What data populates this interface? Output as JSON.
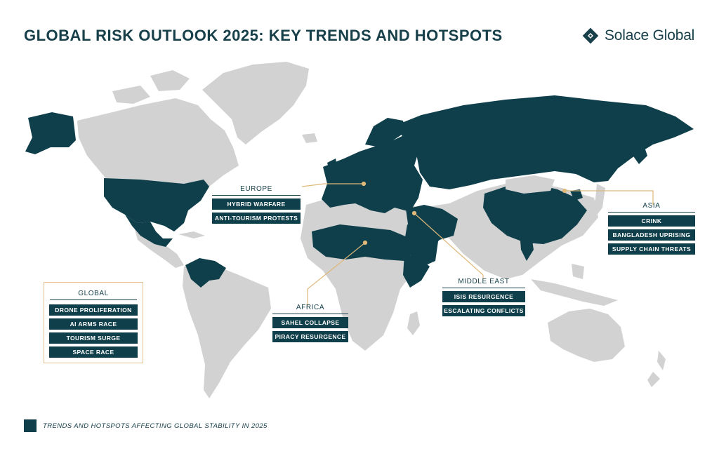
{
  "title": "GLOBAL RISK OUTLOOK 2025: KEY TRENDS AND HOTSPOTS",
  "brand": {
    "name": "Solace Global",
    "icon": "diamond-logo-icon"
  },
  "colors": {
    "hotspot": "#0e3f4b",
    "land": "#d2d2d2",
    "connector": "#e0b878",
    "global_border": "#e6c48f"
  },
  "regions": {
    "europe": {
      "title": "EUROPE",
      "items": [
        "HYBRID WARFARE",
        "ANTI-TOURISM PROTESTS"
      ]
    },
    "asia": {
      "title": "ASIA",
      "items": [
        "CRINK",
        "BANGLADESH UPRISING",
        "SUPPLY CHAIN THREATS"
      ]
    },
    "middle_east": {
      "title": "MIDDLE EAST",
      "items": [
        "ISIS RESURGENCE",
        "ESCALATING CONFLICTS"
      ]
    },
    "africa": {
      "title": "AFRICA",
      "items": [
        "SAHEL COLLAPSE",
        "PIRACY RESURGENCE"
      ]
    },
    "global": {
      "title": "GLOBAL",
      "items": [
        "DRONE PROLIFERATION",
        "AI ARMS RACE",
        "TOURISM SURGE",
        "SPACE RACE"
      ]
    }
  },
  "legend": {
    "label": "TRENDS AND HOTSPOTS AFFECTING GLOBAL STABILITY IN 2025"
  }
}
